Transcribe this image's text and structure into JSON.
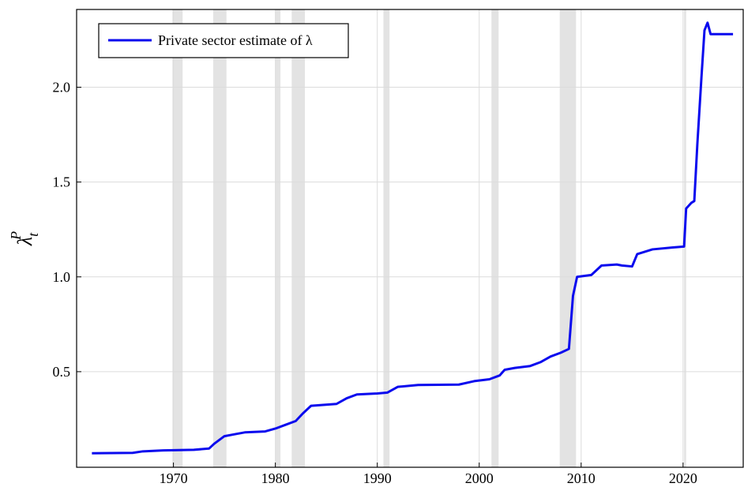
{
  "chart_data": {
    "type": "line",
    "ylabel": {
      "base": "λ",
      "sub": "t",
      "sup": "P"
    },
    "x": [
      1962.0,
      1966.0,
      1967.0,
      1969.0,
      1972.0,
      1973.5,
      1974.0,
      1975.0,
      1976.0,
      1977.0,
      1979.0,
      1980.0,
      1981.0,
      1982.0,
      1982.7,
      1983.5,
      1986.0,
      1987.0,
      1988.0,
      1990.0,
      1991.0,
      1992.0,
      1994.0,
      1998.0,
      1999.5,
      2001.0,
      2002.0,
      2002.5,
      2003.5,
      2005.0,
      2006.0,
      2007.0,
      2008.0,
      2008.8,
      2009.2,
      2009.6,
      2011.0,
      2012.0,
      2013.5,
      2014.0,
      2015.0,
      2015.5,
      2017.0,
      2019.0,
      2020.1,
      2020.3,
      2020.8,
      2021.1,
      2021.4,
      2021.8,
      2022.1,
      2022.4,
      2022.7,
      2024.0,
      2024.9
    ],
    "series": [
      {
        "name": "Private sector estimate of λ",
        "color": "#0a0aee",
        "values": [
          0.07,
          0.072,
          0.08,
          0.085,
          0.088,
          0.095,
          0.12,
          0.16,
          0.17,
          0.18,
          0.185,
          0.2,
          0.22,
          0.24,
          0.28,
          0.32,
          0.33,
          0.36,
          0.38,
          0.385,
          0.39,
          0.42,
          0.43,
          0.432,
          0.45,
          0.46,
          0.48,
          0.51,
          0.52,
          0.53,
          0.55,
          0.58,
          0.6,
          0.62,
          0.9,
          1.0,
          1.01,
          1.06,
          1.065,
          1.06,
          1.055,
          1.12,
          1.145,
          1.155,
          1.16,
          1.36,
          1.39,
          1.4,
          1.7,
          2.05,
          2.3,
          2.34,
          2.28,
          2.28,
          2.28
        ]
      }
    ],
    "recessions": [
      [
        1969.9,
        1970.9
      ],
      [
        1973.9,
        1975.2
      ],
      [
        1980.0,
        1980.5
      ],
      [
        1981.6,
        1982.9
      ],
      [
        1990.6,
        1991.2
      ],
      [
        2001.2,
        2001.9
      ],
      [
        2007.9,
        2009.5
      ],
      [
        2020.1,
        2020.3
      ]
    ],
    "recession_color": "#e3e3e3",
    "xlim": [
      1960.5,
      2025.9
    ],
    "xticks": [
      1970,
      1980,
      1990,
      2000,
      2010,
      2020
    ],
    "ylim": [
      -0.004,
      2.41
    ],
    "yticks": [
      0.5,
      {
        "value": 1.0,
        "label": "1.0"
      },
      1.5,
      {
        "value": 2.0,
        "label": "2.0"
      }
    ],
    "grid": true,
    "legend": "upper-left"
  }
}
